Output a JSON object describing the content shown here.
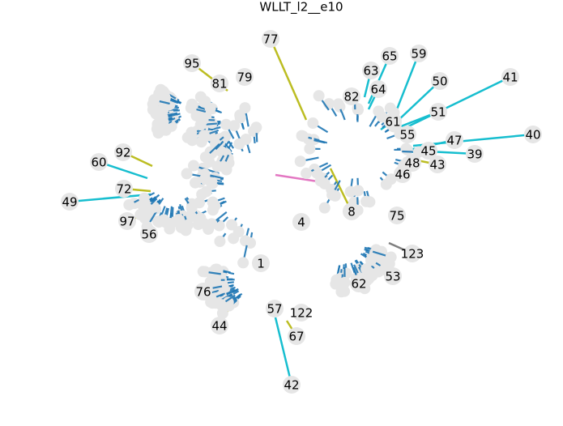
{
  "title": "WLLT_l2__e10",
  "nodes": [
    "77",
    "95",
    "81",
    "79",
    "65",
    "59",
    "63",
    "64",
    "82",
    "50",
    "41",
    "51",
    "61",
    "55",
    "40",
    "47",
    "45",
    "39",
    "43",
    "48",
    "46",
    "92",
    "60",
    "72",
    "49",
    "97",
    "56",
    "8",
    "4",
    "75",
    "123",
    "53",
    "62",
    "1",
    "76",
    "57",
    "122",
    "44",
    "67",
    "42"
  ]
}
